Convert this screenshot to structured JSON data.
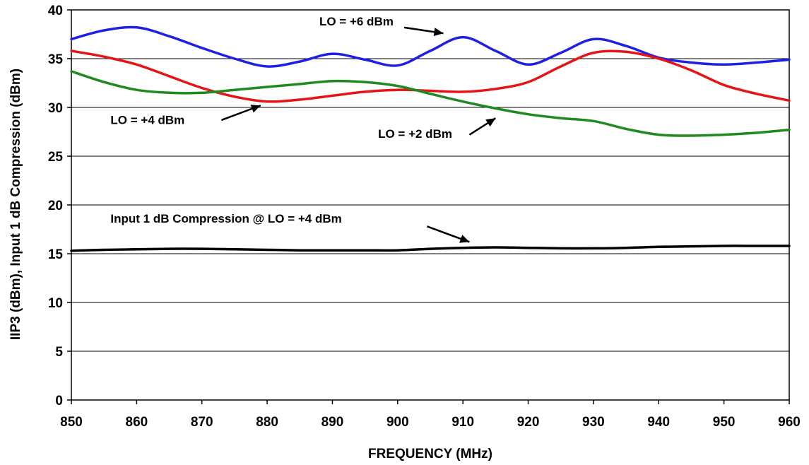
{
  "chart_data": {
    "type": "line",
    "xlabel": "FREQUENCY (MHz)",
    "ylabel": "IIP3 (dBm), Input 1 dB  Compression (dBm)",
    "xlim": [
      850,
      960
    ],
    "ylim": [
      0,
      40
    ],
    "xticks": [
      "850",
      "860",
      "870",
      "880",
      "890",
      "900",
      "910",
      "920",
      "930",
      "940",
      "950",
      "960"
    ],
    "yticks": [
      "0",
      "5",
      "10",
      "15",
      "20",
      "25",
      "30",
      "35",
      "40"
    ],
    "grid": "horizontal",
    "series": [
      {
        "name": "LO = +6 dBm",
        "color": "#1f1fe6",
        "x": [
          850,
          855,
          860,
          865,
          870,
          875,
          880,
          885,
          890,
          895,
          900,
          905,
          910,
          915,
          920,
          925,
          930,
          935,
          940,
          945,
          950,
          955,
          960
        ],
        "y": [
          37.0,
          37.9,
          38.2,
          37.3,
          36.1,
          35.0,
          34.2,
          34.7,
          35.5,
          34.9,
          34.3,
          35.8,
          37.2,
          35.8,
          34.4,
          35.6,
          37.0,
          36.3,
          35.1,
          34.6,
          34.4,
          34.6,
          34.9
        ]
      },
      {
        "name": "LO = +4 dBm",
        "color": "#e61414",
        "x": [
          850,
          855,
          860,
          865,
          870,
          875,
          880,
          885,
          890,
          895,
          900,
          905,
          910,
          915,
          920,
          925,
          930,
          935,
          940,
          945,
          950,
          955,
          960
        ],
        "y": [
          35.8,
          35.2,
          34.4,
          33.2,
          32.0,
          31.1,
          30.6,
          30.8,
          31.2,
          31.6,
          31.8,
          31.7,
          31.6,
          31.9,
          32.6,
          34.2,
          35.6,
          35.7,
          35.0,
          33.8,
          32.3,
          31.4,
          30.7
        ]
      },
      {
        "name": "LO = +2 dBm",
        "color": "#1f8a1f",
        "x": [
          850,
          855,
          860,
          865,
          870,
          875,
          880,
          885,
          890,
          895,
          900,
          905,
          910,
          915,
          920,
          925,
          930,
          935,
          940,
          945,
          950,
          955,
          960
        ],
        "y": [
          33.7,
          32.6,
          31.8,
          31.5,
          31.5,
          31.8,
          32.1,
          32.4,
          32.7,
          32.6,
          32.2,
          31.4,
          30.6,
          29.9,
          29.3,
          28.9,
          28.6,
          27.8,
          27.2,
          27.1,
          27.2,
          27.4,
          27.7
        ]
      },
      {
        "name": "Input 1 dB Compression @ LO = +4 dBm",
        "color": "#000000",
        "x": [
          850,
          855,
          860,
          865,
          870,
          875,
          880,
          885,
          890,
          895,
          900,
          905,
          910,
          915,
          920,
          925,
          930,
          935,
          940,
          945,
          950,
          955,
          960
        ],
        "y": [
          15.3,
          15.4,
          15.45,
          15.5,
          15.5,
          15.45,
          15.4,
          15.35,
          15.35,
          15.35,
          15.35,
          15.5,
          15.6,
          15.65,
          15.6,
          15.55,
          15.55,
          15.6,
          15.7,
          15.75,
          15.8,
          15.8,
          15.8
        ]
      }
    ],
    "annotations": [
      {
        "text": "LO = +6 dBm",
        "label_at": [
          888,
          38.4
        ],
        "arrow_from": [
          901,
          38.2
        ],
        "arrow_to": [
          907,
          37.6
        ]
      },
      {
        "text": "LO = +4 dBm",
        "label_at": [
          856,
          28.3
        ],
        "arrow_from": [
          873,
          28.7
        ],
        "arrow_to": [
          879,
          30.2
        ]
      },
      {
        "text": "LO = +2 dBm",
        "label_at": [
          897,
          26.9
        ],
        "arrow_from": [
          911,
          27.2
        ],
        "arrow_to": [
          915,
          28.9
        ]
      },
      {
        "text": "Input 1 dB Compression @ LO = +4 dBm",
        "label_at": [
          856,
          18.2
        ],
        "arrow_from": [
          904.5,
          17.8
        ],
        "arrow_to": [
          911,
          16.2
        ]
      }
    ]
  }
}
